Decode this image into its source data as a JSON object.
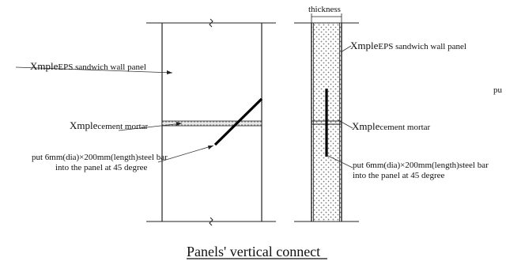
{
  "diagram": {
    "title": "Panels' vertical connect",
    "left_view": {
      "panel_label": {
        "prefix": "Xmple",
        "text": "EPS sandwich wall panel"
      },
      "mortar_label": {
        "prefix": "Xmple",
        "text": "cement mortar"
      },
      "bar_label": {
        "line1": "put 6mm(dia)×200mm(length)steel bar",
        "line2": "into the panel at 45 degree"
      }
    },
    "right_view": {
      "thickness_label": "thickness",
      "panel_label": {
        "prefix": "Xmple",
        "text": "EPS sandwich wall panel"
      },
      "mortar_label": {
        "prefix": "Xmple",
        "text": "cement mortar"
      },
      "bar_label": {
        "line1": "put 6mm(dia)×200mm(length)steel bar",
        "line2": "into the panel at 45 degree"
      }
    },
    "edge_fragment": "pu"
  }
}
